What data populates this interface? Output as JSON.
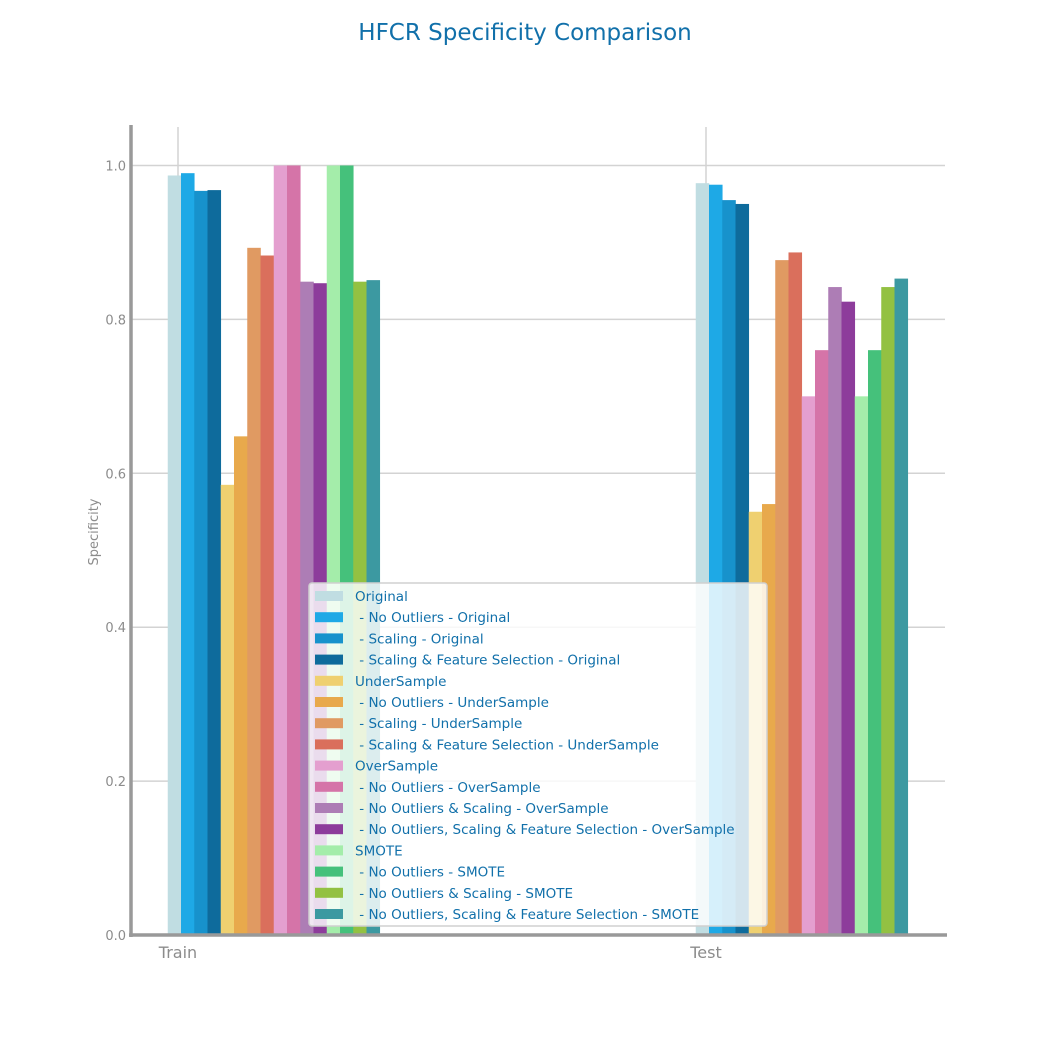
{
  "chart_data": {
    "type": "bar",
    "title": "HFCR Specificity Comparison",
    "xlabel": "",
    "ylabel": "Specificity",
    "categories": [
      "Train",
      "Test"
    ],
    "ylim": [
      0,
      1.05
    ],
    "yticks": [
      "0.0",
      "0.2",
      "0.4",
      "0.6",
      "0.8",
      "1.0"
    ],
    "grid": true,
    "legend_position": "bottom-center",
    "series": [
      {
        "name": "Original",
        "color": "#c0dde2",
        "values": [
          0.987,
          0.977
        ]
      },
      {
        "name": " - No Outliers - Original",
        "color": "#1ea9e6",
        "values": [
          0.99,
          0.975
        ]
      },
      {
        "name": " - Scaling - Original",
        "color": "#1792cc",
        "values": [
          0.967,
          0.955
        ]
      },
      {
        "name": " - Scaling & Feature Selection - Original",
        "color": "#0e6b9c",
        "values": [
          0.968,
          0.95
        ]
      },
      {
        "name": "UnderSample",
        "color": "#efd070",
        "values": [
          0.585,
          0.55
        ]
      },
      {
        "name": " - No Outliers - UnderSample",
        "color": "#e8a94c",
        "values": [
          0.648,
          0.56
        ]
      },
      {
        "name": " - Scaling - UnderSample",
        "color": "#e09a62",
        "values": [
          0.893,
          0.877
        ]
      },
      {
        "name": " - Scaling & Feature Selection - UnderSample",
        "color": "#da6f5c",
        "values": [
          0.883,
          0.887
        ]
      },
      {
        "name": "OverSample",
        "color": "#e49fcf",
        "values": [
          1.0,
          0.7
        ]
      },
      {
        "name": " - No Outliers - OverSample",
        "color": "#d574a8",
        "values": [
          1.0,
          0.76
        ]
      },
      {
        "name": " - No Outliers & Scaling - OverSample",
        "color": "#ad7db5",
        "values": [
          0.849,
          0.842
        ]
      },
      {
        "name": " - No Outliers, Scaling & Feature Selection - OverSample",
        "color": "#8d3c9b",
        "values": [
          0.847,
          0.823
        ]
      },
      {
        "name": "SMOTE",
        "color": "#a4edaa",
        "values": [
          1.0,
          0.7
        ]
      },
      {
        "name": " - No Outliers - SMOTE",
        "color": "#45c17b",
        "values": [
          1.0,
          0.76
        ]
      },
      {
        "name": " - No Outliers & Scaling - SMOTE",
        "color": "#93c142",
        "values": [
          0.849,
          0.842
        ]
      },
      {
        "name": " - No Outliers, Scaling & Feature Selection - SMOTE",
        "color": "#3c99a1",
        "values": [
          0.851,
          0.853
        ]
      }
    ]
  }
}
